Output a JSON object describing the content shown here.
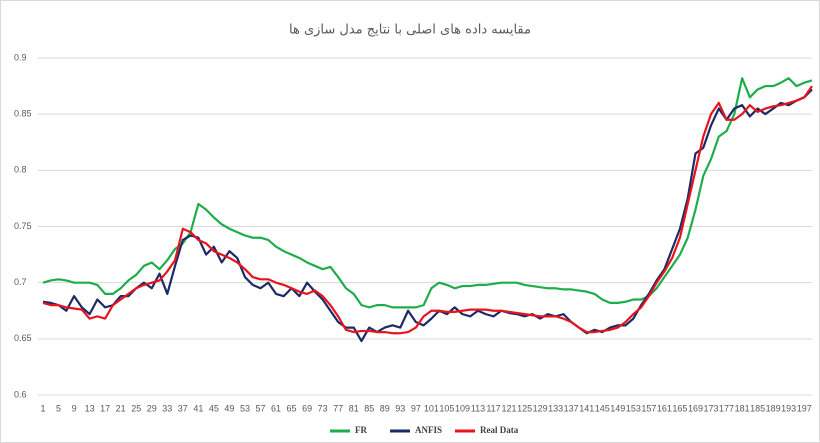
{
  "chart_data": {
    "type": "line",
    "title": "مقایسه داده های اصلی با نتایج مدل سازی ها",
    "categories": [
      1,
      null,
      5,
      null,
      9,
      null,
      13,
      null,
      17,
      null,
      21,
      null,
      25,
      null,
      29,
      null,
      33,
      null,
      37,
      null,
      41,
      null,
      45,
      null,
      49,
      null,
      53,
      null,
      57,
      null,
      61,
      null,
      65,
      null,
      69,
      null,
      73,
      null,
      77,
      null,
      81,
      null,
      85,
      null,
      89,
      null,
      93,
      null,
      97,
      null,
      101,
      null,
      105,
      null,
      109,
      null,
      113,
      null,
      117,
      null,
      121,
      null,
      125,
      null,
      129,
      null,
      133,
      null,
      137,
      null,
      141,
      null,
      145,
      null,
      149,
      null,
      153,
      null,
      157,
      null,
      161,
      null,
      165,
      null,
      169,
      null,
      173,
      null,
      177,
      null,
      181,
      null,
      185,
      null,
      189,
      null,
      193,
      null,
      197,
      null
    ],
    "series": [
      {
        "name": "FR",
        "color": "#1fad4b",
        "values": [
          0.7,
          0.702,
          0.703,
          0.702,
          0.7,
          0.7,
          0.7,
          0.698,
          0.69,
          0.69,
          0.695,
          0.702,
          0.707,
          0.715,
          0.718,
          0.712,
          0.72,
          0.73,
          0.735,
          0.745,
          0.77,
          0.765,
          0.758,
          0.752,
          0.748,
          0.745,
          0.742,
          0.74,
          0.74,
          0.738,
          0.732,
          0.728,
          0.725,
          0.722,
          0.718,
          0.715,
          0.712,
          0.714,
          0.705,
          0.695,
          0.69,
          0.68,
          0.678,
          0.68,
          0.68,
          0.678,
          0.678,
          0.678,
          0.678,
          0.68,
          0.695,
          0.7,
          0.698,
          0.695,
          0.697,
          0.697,
          0.698,
          0.698,
          0.699,
          0.7,
          0.7,
          0.7,
          0.698,
          0.697,
          0.696,
          0.695,
          0.695,
          0.694,
          0.694,
          0.693,
          0.692,
          0.69,
          0.685,
          0.682,
          0.682,
          0.683,
          0.685,
          0.685,
          0.688,
          0.695,
          0.705,
          0.715,
          0.725,
          0.74,
          0.765,
          0.795,
          0.81,
          0.83,
          0.835,
          0.85,
          0.882,
          0.865,
          0.872,
          0.875,
          0.875,
          0.878,
          0.882,
          0.875,
          0.878,
          0.88
        ]
      },
      {
        "name": "ANFIS",
        "color": "#1c2a66",
        "values": [
          0.683,
          0.682,
          0.68,
          0.675,
          0.688,
          0.678,
          0.672,
          0.685,
          0.678,
          0.68,
          0.688,
          0.688,
          0.695,
          0.7,
          0.695,
          0.708,
          0.69,
          0.715,
          0.738,
          0.742,
          0.74,
          0.725,
          0.732,
          0.718,
          0.728,
          0.722,
          0.705,
          0.698,
          0.695,
          0.7,
          0.69,
          0.688,
          0.695,
          0.688,
          0.7,
          0.692,
          0.685,
          0.675,
          0.665,
          0.66,
          0.66,
          0.648,
          0.66,
          0.656,
          0.66,
          0.662,
          0.66,
          0.675,
          0.665,
          0.662,
          0.668,
          0.675,
          0.672,
          0.678,
          0.672,
          0.67,
          0.675,
          0.672,
          0.67,
          0.675,
          0.673,
          0.672,
          0.67,
          0.672,
          0.668,
          0.672,
          0.67,
          0.672,
          0.665,
          0.66,
          0.655,
          0.658,
          0.656,
          0.66,
          0.662,
          0.662,
          0.668,
          0.68,
          0.69,
          0.702,
          0.712,
          0.73,
          0.748,
          0.775,
          0.815,
          0.82,
          0.84,
          0.855,
          0.845,
          0.855,
          0.858,
          0.848,
          0.855,
          0.85,
          0.855,
          0.86,
          0.858,
          0.862,
          0.865,
          0.872
        ]
      },
      {
        "name": "Real Data",
        "color": "#e8141b",
        "values": [
          0.682,
          0.68,
          0.68,
          0.678,
          0.677,
          0.676,
          0.668,
          0.67,
          0.668,
          0.68,
          0.685,
          0.69,
          0.695,
          0.698,
          0.7,
          0.702,
          0.71,
          0.72,
          0.748,
          0.745,
          0.738,
          0.735,
          0.728,
          0.725,
          0.722,
          0.718,
          0.712,
          0.705,
          0.703,
          0.703,
          0.7,
          0.698,
          0.695,
          0.692,
          0.69,
          0.693,
          0.688,
          0.68,
          0.67,
          0.658,
          0.656,
          0.657,
          0.657,
          0.656,
          0.656,
          0.655,
          0.655,
          0.656,
          0.66,
          0.67,
          0.675,
          0.675,
          0.674,
          0.674,
          0.675,
          0.676,
          0.676,
          0.676,
          0.675,
          0.675,
          0.674,
          0.673,
          0.672,
          0.671,
          0.67,
          0.67,
          0.67,
          0.668,
          0.665,
          0.66,
          0.656,
          0.656,
          0.657,
          0.658,
          0.66,
          0.665,
          0.672,
          0.678,
          0.688,
          0.7,
          0.71,
          0.722,
          0.74,
          0.77,
          0.8,
          0.83,
          0.85,
          0.86,
          0.845,
          0.845,
          0.85,
          0.858,
          0.852,
          0.855,
          0.857,
          0.858,
          0.86,
          0.862,
          0.865,
          0.875
        ]
      }
    ],
    "ylim": [
      0.6,
      0.9
    ],
    "yticks": [
      0.6,
      0.65,
      0.7,
      0.75,
      0.8,
      0.85,
      0.9
    ],
    "grid": true,
    "legend": "bottom"
  }
}
